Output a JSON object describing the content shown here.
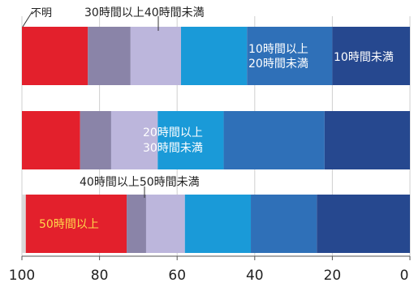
{
  "chart_data": {
    "type": "bar",
    "orientation": "horizontal-stacked-100",
    "x_axis": {
      "reversed": true,
      "xlim": [
        0,
        100
      ],
      "ticks": [
        100,
        80,
        60,
        40,
        20,
        0
      ]
    },
    "categories": [
      "",
      "",
      ""
    ],
    "series": [
      {
        "name": "不明",
        "color": "#d9d9d9",
        "values": [
          0,
          0,
          1
        ]
      },
      {
        "name": "50時間以上",
        "color": "#e3202c",
        "values": [
          17,
          15,
          26
        ]
      },
      {
        "name": "40時間以上50時間未満",
        "color": "#8a84a8",
        "values": [
          11,
          8,
          5
        ]
      },
      {
        "name": "30時間以上40時間未満",
        "color": "#bcb6dc",
        "values": [
          13,
          12,
          10
        ]
      },
      {
        "name": "20時間以上30時間未満",
        "color": "#1a9ad8",
        "values": [
          17,
          17,
          17
        ]
      },
      {
        "name": "10時間以上20時間未満",
        "color": "#2f70b8",
        "values": [
          22,
          26,
          17
        ]
      },
      {
        "name": "10時間未満",
        "color": "#26488f",
        "values": [
          20,
          22,
          24
        ]
      }
    ],
    "annotations": [
      {
        "text": "不明",
        "color": "#222222"
      },
      {
        "text": "30時間以上40時間未満",
        "color": "#222222"
      },
      {
        "text": "10時間以上",
        "color": "#ffffff"
      },
      {
        "text": "20時間未満",
        "color": "#ffffff"
      },
      {
        "text": "10時間未満",
        "color": "#ffffff"
      },
      {
        "text": "20時間以上",
        "color": "#ffffff"
      },
      {
        "text": "30時間未満",
        "color": "#ffffff"
      },
      {
        "text": "40時間以上50時間未満",
        "color": "#222222"
      },
      {
        "text": "50時間以上",
        "color": "#ffd84a"
      }
    ]
  }
}
